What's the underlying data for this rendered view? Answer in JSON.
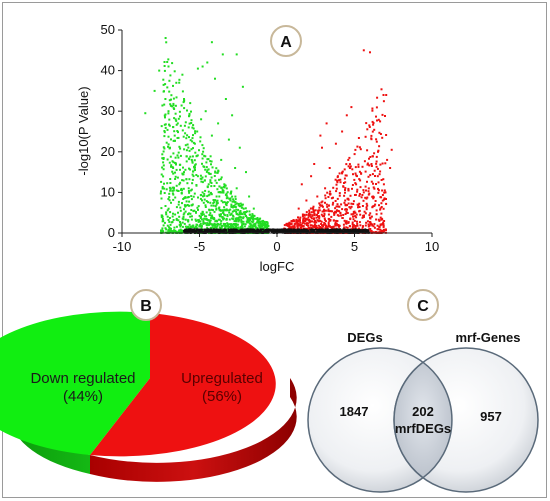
{
  "chart_data": [
    {
      "type": "scatter",
      "panel_label": "A",
      "xlabel": "logFC",
      "ylabel": "-log10(P Value)",
      "xlim": [
        -10,
        10
      ],
      "ylim": [
        0,
        50
      ],
      "xticks": [
        -10,
        -5,
        0,
        5,
        10
      ],
      "yticks": [
        0,
        10,
        20,
        30,
        40,
        50
      ],
      "series": [
        {
          "color": "#22dd22",
          "points": [
            [
              -4.2,
              47
            ],
            [
              -3.5,
              44
            ],
            [
              -2.6,
              44
            ],
            [
              -7.6,
              40
            ],
            [
              -7.0,
              41
            ],
            [
              -4.8,
              41
            ],
            [
              -4.5,
              42
            ],
            [
              -5.1,
              40.5
            ],
            [
              -7.9,
              35
            ],
            [
              -7.2,
              33
            ],
            [
              -6.5,
              37
            ],
            [
              -6.1,
              39
            ],
            [
              -4.0,
              38
            ],
            [
              -2.2,
              36
            ],
            [
              -6.0,
              33
            ],
            [
              -5.6,
              32
            ],
            [
              -4.6,
              30
            ],
            [
              -3.3,
              33
            ],
            [
              -7.0,
              30
            ],
            [
              -6.4,
              27
            ],
            [
              -5.7,
              26
            ],
            [
              -4.9,
              28
            ],
            [
              -3.8,
              27
            ],
            [
              -2.9,
              29
            ],
            [
              -8.5,
              29.5
            ],
            [
              -6.6,
              24
            ],
            [
              -5.3,
              22
            ],
            [
              -4.2,
              24
            ],
            [
              -3.1,
              23
            ],
            [
              -2.4,
              21
            ],
            [
              -6.9,
              21
            ],
            [
              -6.2,
              19
            ],
            [
              -5.5,
              18
            ],
            [
              -4.7,
              19
            ],
            [
              -3.6,
              18
            ],
            [
              -2.7,
              16
            ],
            [
              -2.0,
              15
            ],
            [
              -6.0,
              15
            ],
            [
              -5.1,
              14
            ],
            [
              -4.3,
              13
            ],
            [
              -3.4,
              12
            ],
            [
              -2.6,
              11
            ],
            [
              -1.8,
              9
            ],
            [
              -5.7,
              11
            ],
            [
              -4.8,
              10
            ],
            [
              -3.9,
              9
            ],
            [
              -3.0,
              8
            ],
            [
              -2.2,
              7
            ],
            [
              -1.5,
              6
            ],
            [
              -6.3,
              12
            ],
            [
              -6.7,
              16
            ]
          ]
        },
        {
          "color": "#ee1111",
          "points": [
            [
              5.6,
              45
            ],
            [
              6.0,
              44.5
            ],
            [
              4.8,
              31
            ],
            [
              4.5,
              29
            ],
            [
              4.2,
              25
            ],
            [
              3.2,
              27
            ],
            [
              2.8,
              24
            ],
            [
              2.9,
              21
            ],
            [
              3.8,
              22
            ],
            [
              4.6,
              18
            ],
            [
              7.4,
              20.5
            ],
            [
              7.1,
              18
            ],
            [
              7.3,
              16
            ],
            [
              6.5,
              14
            ],
            [
              3.4,
              16
            ],
            [
              2.4,
              17
            ],
            [
              1.6,
              12
            ],
            [
              2.2,
              14
            ],
            [
              5.1,
              12
            ],
            [
              5.6,
              10
            ],
            [
              6.2,
              9
            ],
            [
              6.9,
              12
            ],
            [
              4.0,
              13
            ],
            [
              3.1,
              11
            ],
            [
              2.6,
              9
            ],
            [
              1.9,
              8
            ],
            [
              4.4,
              8
            ],
            [
              5.2,
              7
            ],
            [
              3.6,
              7
            ],
            [
              1.4,
              6
            ]
          ]
        },
        {
          "color": "#111111",
          "points": [
            [
              0,
              0
            ]
          ]
        }
      ]
    },
    {
      "type": "pie",
      "panel_label": "B",
      "slices": [
        {
          "label": "Down regulated",
          "pct_label": "(44%)",
          "value": 44,
          "color": "#11ee11"
        },
        {
          "label": "Upregulated",
          "pct_label": "(56%)",
          "value": 56,
          "color": "#ee1111"
        }
      ]
    },
    {
      "type": "venn",
      "panel_label": "C",
      "sets": [
        {
          "name": "DEGs",
          "only": "1847"
        },
        {
          "name": "mrf-Genes",
          "only": "957"
        }
      ],
      "intersection": {
        "count": "202",
        "label": "mrfDEGs"
      }
    }
  ]
}
